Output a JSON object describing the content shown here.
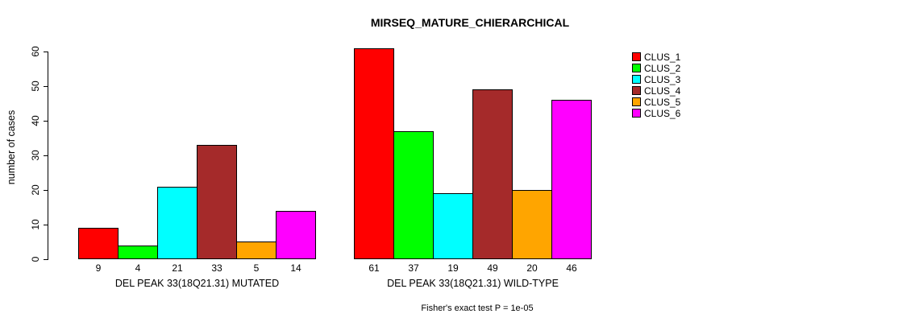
{
  "title": "MIRSEQ_MATURE_CHIERARCHICAL",
  "chart_data": {
    "type": "bar",
    "title": "MIRSEQ_MATURE_CHIERARCHICAL",
    "xlabel": "",
    "ylabel": "number of cases",
    "ylim": [
      0,
      60
    ],
    "yticks": [
      0,
      10,
      20,
      30,
      40,
      50,
      60
    ],
    "grid": false,
    "legend_position": "right",
    "bar_outline_color": "#000000",
    "series": [
      {
        "name": "CLUS_1",
        "color": "#FF0000"
      },
      {
        "name": "CLUS_2",
        "color": "#00FF00"
      },
      {
        "name": "CLUS_3",
        "color": "#00FFFF"
      },
      {
        "name": "CLUS_4",
        "color": "#A52A2A"
      },
      {
        "name": "CLUS_5",
        "color": "#FFA500"
      },
      {
        "name": "CLUS_6",
        "color": "#FF00FF"
      }
    ],
    "groups": [
      {
        "label": "DEL PEAK 33(18Q21.31) MUTATED",
        "values": [
          9,
          4,
          21,
          33,
          5,
          14
        ],
        "value_labels": [
          "9",
          "4",
          "21",
          "33",
          "5",
          "14"
        ]
      },
      {
        "label": "DEL PEAK 33(18Q21.31) WILD-TYPE",
        "values": [
          61,
          37,
          19,
          49,
          20,
          46
        ],
        "value_labels": [
          "61",
          "37",
          "19",
          "49",
          "20",
          "46"
        ]
      }
    ],
    "footnote": "Fisher's exact test P = 1e-05"
  }
}
